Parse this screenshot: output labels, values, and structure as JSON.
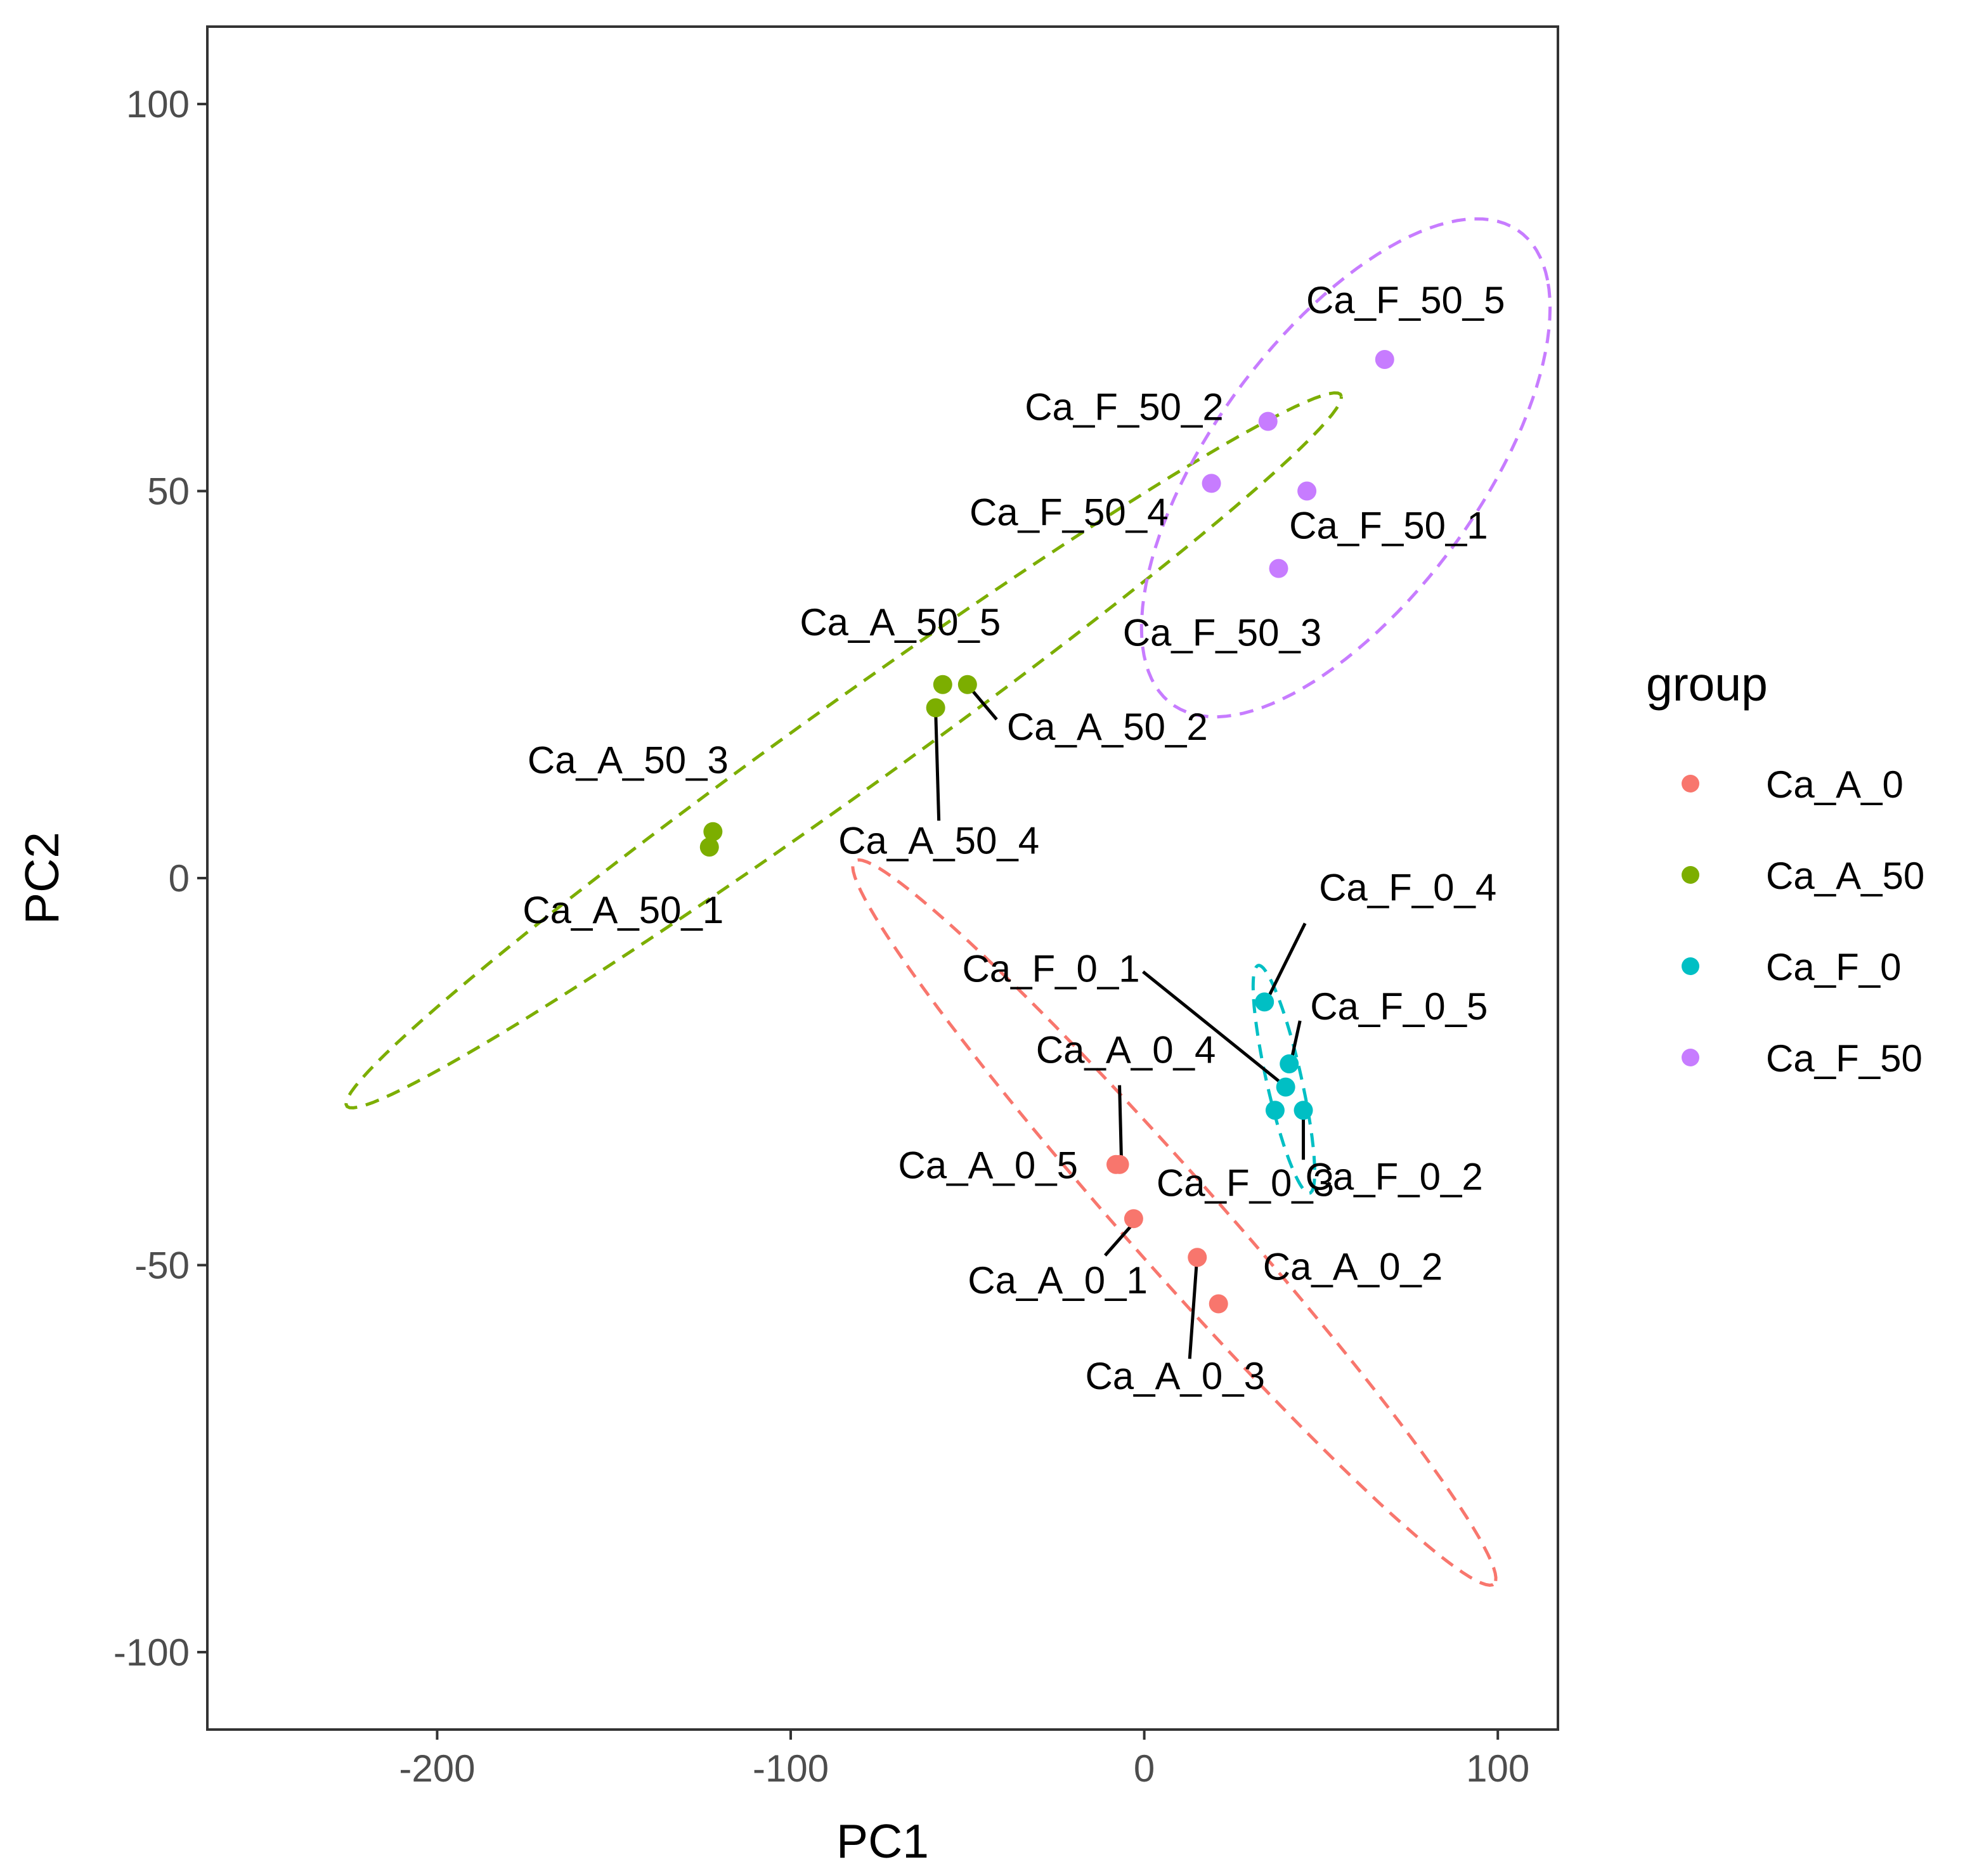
{
  "chart_data": {
    "type": "scatter",
    "xlabel": "PC1",
    "ylabel": "PC2",
    "xlim": [
      -265,
      117
    ],
    "ylim": [
      -110,
      110
    ],
    "xticks": [
      -200,
      -100,
      0,
      100
    ],
    "xtick_labels": [
      "-200",
      "-100",
      "0",
      "100"
    ],
    "yticks": [
      -100,
      -50,
      0,
      50,
      100
    ],
    "ytick_labels": [
      "-100",
      "-50",
      "0",
      "50",
      "100"
    ],
    "grid": false,
    "legend": {
      "title": "group",
      "position": "right",
      "entries": [
        "Ca_A_0",
        "Ca_A_50",
        "Ca_F_0",
        "Ca_F_50"
      ]
    },
    "ellipses": "dashed confidence ellipse per group",
    "series": [
      {
        "name": "Ca_A_0",
        "color": "#F8766D",
        "points": [
          {
            "x": -3,
            "y": -44,
            "label": "Ca_A_0_1"
          },
          {
            "x": 21,
            "y": -55,
            "label": "Ca_A_0_2"
          },
          {
            "x": 15,
            "y": -49,
            "label": "Ca_A_0_3"
          },
          {
            "x": -7,
            "y": -37,
            "label": "Ca_A_0_4"
          },
          {
            "x": -8,
            "y": -37,
            "label": "Ca_A_0_5"
          }
        ]
      },
      {
        "name": "Ca_A_50",
        "color": "#7CAE00",
        "points": [
          {
            "x": -123,
            "y": 4,
            "label": "Ca_A_50_1"
          },
          {
            "x": -50,
            "y": 25,
            "label": "Ca_A_50_2"
          },
          {
            "x": -122,
            "y": 6,
            "label": "Ca_A_50_3"
          },
          {
            "x": -59,
            "y": 22,
            "label": "Ca_A_50_4"
          },
          {
            "x": -57,
            "y": 25,
            "label": "Ca_A_50_5"
          }
        ]
      },
      {
        "name": "Ca_F_0",
        "color": "#00BFC4",
        "points": [
          {
            "x": 40,
            "y": -27,
            "label": "Ca_F_0_1"
          },
          {
            "x": 45,
            "y": -30,
            "label": "Ca_F_0_2"
          },
          {
            "x": 37,
            "y": -30,
            "label": "Ca_F_0_3"
          },
          {
            "x": 34,
            "y": -16,
            "label": "Ca_F_0_4"
          },
          {
            "x": 41,
            "y": -24,
            "label": "Ca_F_0_5"
          }
        ]
      },
      {
        "name": "Ca_F_50",
        "color": "#C77CFF",
        "points": [
          {
            "x": 46,
            "y": 50,
            "label": "Ca_F_50_1"
          },
          {
            "x": 35,
            "y": 59,
            "label": "Ca_F_50_2"
          },
          {
            "x": 38,
            "y": 40,
            "label": "Ca_F_50_3"
          },
          {
            "x": 19,
            "y": 51,
            "label": "Ca_F_50_4"
          },
          {
            "x": 68,
            "y": 67,
            "label": "Ca_F_50_5"
          }
        ]
      }
    ]
  }
}
